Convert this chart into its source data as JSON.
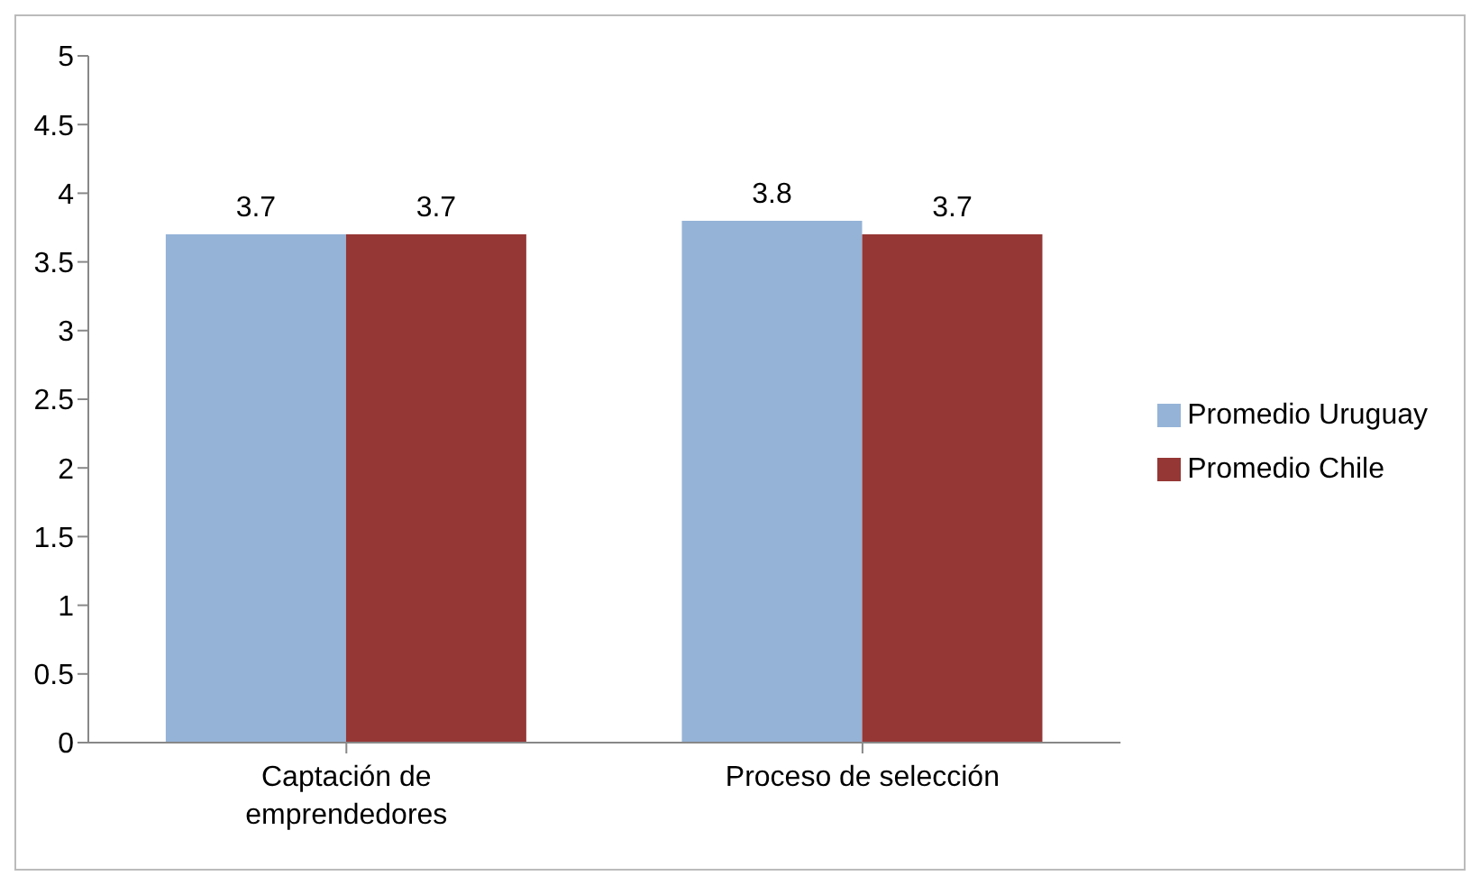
{
  "chart_data": {
    "type": "bar",
    "categories": [
      "Captación de emprendedores",
      "Proceso de selección"
    ],
    "series": [
      {
        "name": "Promedio Uruguay",
        "color": "#95b3d7",
        "values": [
          3.7,
          3.8
        ]
      },
      {
        "name": "Promedio Chile",
        "color": "#953735",
        "values": [
          3.7,
          3.7
        ]
      }
    ],
    "ylim": [
      0,
      5
    ],
    "yticks": [
      0,
      0.5,
      1,
      1.5,
      2,
      2.5,
      3,
      3.5,
      4,
      4.5,
      5
    ],
    "grid": false,
    "legend": "right",
    "data_labels": true
  }
}
